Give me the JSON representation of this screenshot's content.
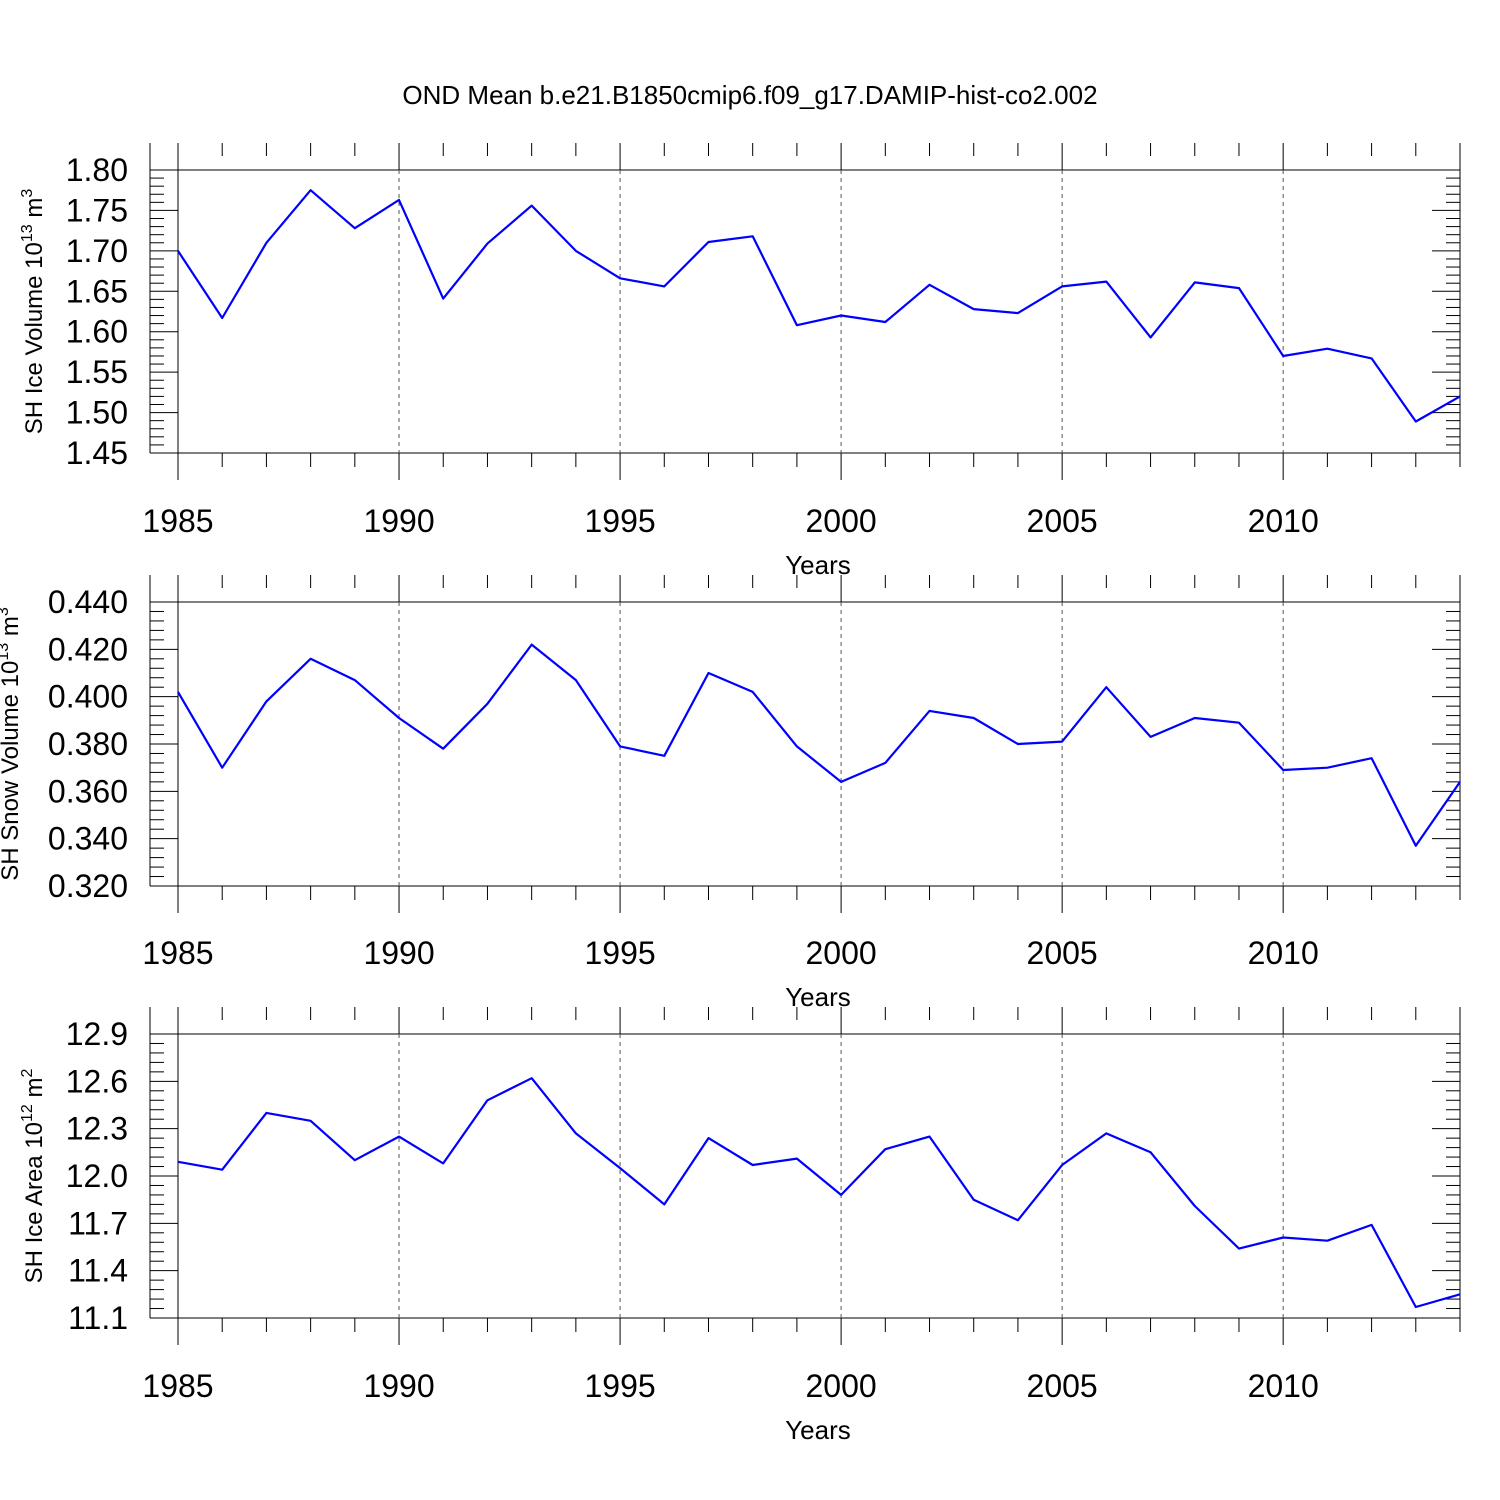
{
  "title": "OND Mean b.e21.B1850cmip6.f09_g17.DAMIP-hist-co2.002",
  "colors": {
    "line": "#0000ff",
    "axis": "#000000",
    "grid": "#555555"
  },
  "chart_data": [
    {
      "type": "line",
      "xlabel": "Years",
      "ylabel_main": "SH Ice Volume 10",
      "ylabel_exp": "13",
      "ylabel_unit": " m",
      "ylabel_unit_exp": "3",
      "xlim": [
        1985,
        2014
      ],
      "ylim": [
        1.45,
        1.8
      ],
      "x_ticks": [
        "1985",
        "1990",
        "1995",
        "2000",
        "2005",
        "2010"
      ],
      "y_ticks": [
        "1.45",
        "1.50",
        "1.55",
        "1.60",
        "1.65",
        "1.70",
        "1.75",
        "1.80"
      ],
      "x_grid": true,
      "series": [
        {
          "x": [
            1985,
            1986,
            1987,
            1988,
            1989,
            1990,
            1991,
            1992,
            1993,
            1994,
            1995,
            1996,
            1997,
            1998,
            1999,
            2000,
            2001,
            2002,
            2003,
            2004,
            2005,
            2006,
            2007,
            2008,
            2009,
            2010,
            2011,
            2012,
            2013,
            2014
          ],
          "values": [
            1.7,
            1.617,
            1.71,
            1.775,
            1.728,
            1.763,
            1.641,
            1.709,
            1.756,
            1.7,
            1.666,
            1.656,
            1.711,
            1.718,
            1.608,
            1.62,
            1.612,
            1.658,
            1.628,
            1.623,
            1.656,
            1.662,
            1.593,
            1.661,
            1.654,
            1.57,
            1.579,
            1.567,
            1.489,
            1.52
          ]
        }
      ]
    },
    {
      "type": "line",
      "xlabel": "Years",
      "ylabel_main": "SH Snow Volume 10",
      "ylabel_exp": "13",
      "ylabel_unit": " m",
      "ylabel_unit_exp": "3",
      "xlim": [
        1985,
        2014
      ],
      "ylim": [
        0.32,
        0.44
      ],
      "x_ticks": [
        "1985",
        "1990",
        "1995",
        "2000",
        "2005",
        "2010"
      ],
      "y_ticks": [
        "0.320",
        "0.340",
        "0.360",
        "0.380",
        "0.400",
        "0.420",
        "0.440"
      ],
      "x_grid": true,
      "series": [
        {
          "x": [
            1985,
            1986,
            1987,
            1988,
            1989,
            1990,
            1991,
            1992,
            1993,
            1994,
            1995,
            1996,
            1997,
            1998,
            1999,
            2000,
            2001,
            2002,
            2003,
            2004,
            2005,
            2006,
            2007,
            2008,
            2009,
            2010,
            2011,
            2012,
            2013,
            2014
          ],
          "values": [
            0.402,
            0.37,
            0.398,
            0.416,
            0.407,
            0.391,
            0.378,
            0.397,
            0.422,
            0.407,
            0.379,
            0.375,
            0.41,
            0.402,
            0.379,
            0.364,
            0.372,
            0.394,
            0.391,
            0.38,
            0.381,
            0.404,
            0.383,
            0.391,
            0.389,
            0.369,
            0.37,
            0.374,
            0.337,
            0.364
          ]
        }
      ]
    },
    {
      "type": "line",
      "xlabel": "Years",
      "ylabel_main": "SH Ice Area 10",
      "ylabel_exp": "12",
      "ylabel_unit": " m",
      "ylabel_unit_exp": "2",
      "xlim": [
        1985,
        2014
      ],
      "ylim": [
        11.1,
        12.9
      ],
      "x_ticks": [
        "1985",
        "1990",
        "1995",
        "2000",
        "2005",
        "2010"
      ],
      "y_ticks": [
        "11.1",
        "11.4",
        "11.7",
        "12.0",
        "12.3",
        "12.6",
        "12.9"
      ],
      "x_grid": true,
      "series": [
        {
          "x": [
            1985,
            1986,
            1987,
            1988,
            1989,
            1990,
            1991,
            1992,
            1993,
            1994,
            1995,
            1996,
            1997,
            1998,
            1999,
            2000,
            2001,
            2002,
            2003,
            2004,
            2005,
            2006,
            2007,
            2008,
            2009,
            2010,
            2011,
            2012,
            2013,
            2014
          ],
          "values": [
            12.09,
            12.04,
            12.4,
            12.35,
            12.1,
            12.25,
            12.08,
            12.48,
            12.62,
            12.27,
            12.05,
            11.82,
            12.24,
            12.07,
            12.11,
            11.88,
            12.17,
            12.25,
            11.85,
            11.72,
            12.07,
            12.27,
            12.15,
            11.81,
            11.54,
            11.61,
            11.59,
            11.69,
            11.17,
            11.25
          ]
        }
      ]
    }
  ]
}
